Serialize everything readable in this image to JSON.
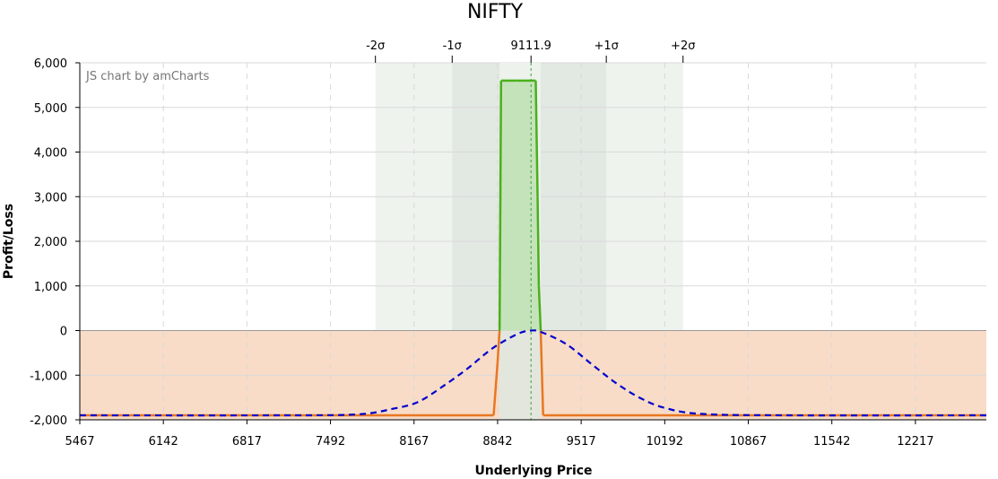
{
  "chart_data": {
    "type": "line",
    "title": "NIFTY",
    "credit": "JS chart by amCharts",
    "xlabel": "Underlying Price",
    "ylabel": "Profit/Loss",
    "xlim": [
      5467,
      12790
    ],
    "ylim": [
      -2000,
      6000
    ],
    "x_ticks": [
      5467,
      6142,
      6817,
      7492,
      8167,
      8842,
      9517,
      10192,
      10867,
      11542,
      12217
    ],
    "x_tick_labels": [
      "5467",
      "6142",
      "6817",
      "7492",
      "8167",
      "8842",
      "9517",
      "10192",
      "10867",
      "11542",
      "12217"
    ],
    "y_ticks": [
      -2000,
      -1000,
      0,
      1000,
      2000,
      3000,
      4000,
      5000,
      6000
    ],
    "y_tick_labels": [
      "-2,000",
      "-1,000",
      "0",
      "1,000",
      "2,000",
      "3,000",
      "4,000",
      "5,000",
      "6,000"
    ],
    "grid": true,
    "spot": {
      "value": 9111.9,
      "label": "9111.9"
    },
    "sigma_bands": [
      {
        "label": "-2σ",
        "value": 7855
      },
      {
        "label": "-1σ",
        "value": 8475
      },
      {
        "label": "+1σ",
        "value": 9720
      },
      {
        "label": "+2σ",
        "value": 10340
      }
    ],
    "loss_region": {
      "from": -2000,
      "to": 0,
      "color": "#f8dcc8"
    },
    "series": [
      {
        "style": "solid",
        "color": "#e87722",
        "profit_color": "#49b01a",
        "profit_fill": "#c5e3bb",
        "x": [
          5467,
          8810,
          8842,
          8858,
          8870,
          9000,
          9150,
          9165,
          9175,
          9190,
          9210,
          12790
        ],
        "values": [
          -1900,
          -1900,
          -700,
          0,
          5600,
          5600,
          5600,
          3000,
          1000,
          0,
          -1900,
          -1900
        ]
      },
      {
        "style": "dashed",
        "color": "#0000cc",
        "x": [
          5467,
          7000,
          7700,
          8000,
          8200,
          8400,
          8600,
          8800,
          9000,
          9111.9,
          9200,
          9400,
          9600,
          9800,
          10000,
          10200,
          10500,
          11200,
          12790
        ],
        "values": [
          -1900,
          -1900,
          -1880,
          -1750,
          -1600,
          -1250,
          -850,
          -400,
          -80,
          0,
          -40,
          -310,
          -750,
          -1180,
          -1520,
          -1740,
          -1870,
          -1900,
          -1900
        ]
      }
    ],
    "colors": {
      "band_outer": "#eef3ee",
      "band_inner": "#e2e8e2",
      "band_center": "#edf2ed",
      "grid": "#d9d9d9",
      "spot_line": "#3aa03a",
      "axis": "#000000"
    }
  }
}
